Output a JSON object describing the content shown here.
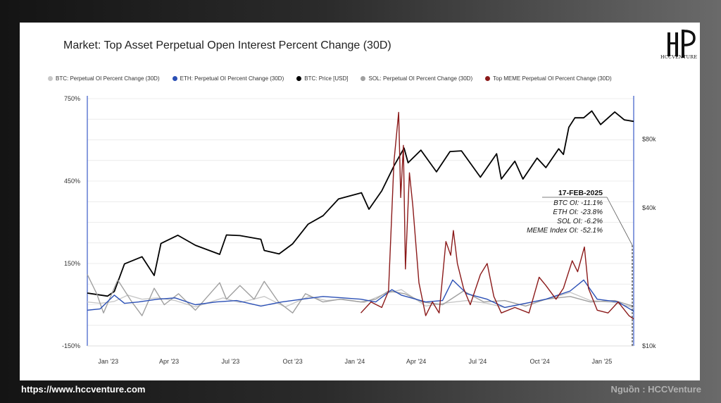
{
  "brand": {
    "logo_text": "HCCVENTURE"
  },
  "footer": {
    "url": "https://www.hccventure.com",
    "source": "Nguồn : HCCVenture"
  },
  "chart_data": {
    "type": "line",
    "title": "Market: Top Asset Perpetual Open Interest Percent Change (30D)",
    "legend": [
      {
        "name": "BTC: Perpetual OI Percent Change (30D)",
        "color": "#c8c8c8"
      },
      {
        "name": "ETH: Perpetual OI Percent Change (30D)",
        "color": "#2a4fb5"
      },
      {
        "name": "BTC: Price [USD]",
        "color": "#000000"
      },
      {
        "name": "SOL: Perpetual OI Percent Change (30D)",
        "color": "#a0a0a0"
      },
      {
        "name": "Top MEME Perpetual OI Percent Change (30D)",
        "color": "#8b1a1a"
      }
    ],
    "legend_position": "top",
    "x_ticks": [
      "Jan '23",
      "Apr '23",
      "Jul '23",
      "Oct '23",
      "Jan '24",
      "Apr '24",
      "Jul '24",
      "Oct '24",
      "Jan '25"
    ],
    "x_tick_dates": [
      "2023-01-01",
      "2023-04-01",
      "2023-07-01",
      "2023-10-01",
      "2024-01-01",
      "2024-04-01",
      "2024-07-01",
      "2024-10-01",
      "2025-01-01"
    ],
    "xlim": [
      "2022-12-01",
      "2025-02-17"
    ],
    "y_left": {
      "ticks": [
        "750%",
        "450%",
        "150%",
        "-150%"
      ],
      "values": [
        750,
        450,
        150,
        -150
      ],
      "ylim": [
        -150,
        750
      ]
    },
    "y_right": {
      "ticks": [
        "$80k",
        "$40k",
        "$10k"
      ],
      "values": [
        80000,
        40000,
        10000
      ],
      "scale": "log",
      "ylim": [
        10000,
        120000
      ]
    },
    "grid": true,
    "series": [
      {
        "name": "BTC: Price [USD]",
        "axis": "right",
        "color": "#000000",
        "points": [
          [
            "2022-12-01",
            17000
          ],
          [
            "2022-12-31",
            16500
          ],
          [
            "2023-01-10",
            17300
          ],
          [
            "2023-01-25",
            22800
          ],
          [
            "2023-02-20",
            24500
          ],
          [
            "2023-03-10",
            20300
          ],
          [
            "2023-03-20",
            28000
          ],
          [
            "2023-04-14",
            30400
          ],
          [
            "2023-05-10",
            27500
          ],
          [
            "2023-06-15",
            25100
          ],
          [
            "2023-06-25",
            30500
          ],
          [
            "2023-07-15",
            30300
          ],
          [
            "2023-08-15",
            29200
          ],
          [
            "2023-08-20",
            26100
          ],
          [
            "2023-09-11",
            25200
          ],
          [
            "2023-10-01",
            27900
          ],
          [
            "2023-10-24",
            34000
          ],
          [
            "2023-11-15",
            37000
          ],
          [
            "2023-12-08",
            43800
          ],
          [
            "2024-01-11",
            46600
          ],
          [
            "2024-01-22",
            39500
          ],
          [
            "2024-02-10",
            47500
          ],
          [
            "2024-02-28",
            61000
          ],
          [
            "2024-03-14",
            73000
          ],
          [
            "2024-03-20",
            63000
          ],
          [
            "2024-04-08",
            71500
          ],
          [
            "2024-05-01",
            57500
          ],
          [
            "2024-05-21",
            70500
          ],
          [
            "2024-06-07",
            71000
          ],
          [
            "2024-07-05",
            54500
          ],
          [
            "2024-07-29",
            69000
          ],
          [
            "2024-08-05",
            53500
          ],
          [
            "2024-08-25",
            64000
          ],
          [
            "2024-09-06",
            53500
          ],
          [
            "2024-09-27",
            66000
          ],
          [
            "2024-10-10",
            60000
          ],
          [
            "2024-10-29",
            72500
          ],
          [
            "2024-11-05",
            68500
          ],
          [
            "2024-11-13",
            90000
          ],
          [
            "2024-11-22",
            99000
          ],
          [
            "2024-12-05",
            99000
          ],
          [
            "2024-12-17",
            106000
          ],
          [
            "2024-12-30",
            92500
          ],
          [
            "2025-01-20",
            105000
          ],
          [
            "2025-02-03",
            97000
          ],
          [
            "2025-02-17",
            95500
          ]
        ]
      },
      {
        "name": "BTC: Perpetual OI Percent Change (30D)",
        "axis": "left",
        "color": "#c8c8c8",
        "points": [
          [
            "2022-12-01",
            10
          ],
          [
            "2022-12-20",
            5
          ],
          [
            "2023-01-10",
            12
          ],
          [
            "2023-01-30",
            35
          ],
          [
            "2023-02-20",
            20
          ],
          [
            "2023-03-15",
            25
          ],
          [
            "2023-04-10",
            15
          ],
          [
            "2023-05-10",
            -8
          ],
          [
            "2023-06-20",
            25
          ],
          [
            "2023-07-15",
            8
          ],
          [
            "2023-08-20",
            30
          ],
          [
            "2023-09-20",
            -8
          ],
          [
            "2023-10-25",
            30
          ],
          [
            "2023-11-20",
            15
          ],
          [
            "2023-12-15",
            20
          ],
          [
            "2024-01-15",
            8
          ],
          [
            "2024-02-15",
            40
          ],
          [
            "2024-03-10",
            55
          ],
          [
            "2024-04-15",
            -5
          ],
          [
            "2024-05-20",
            8
          ],
          [
            "2024-06-15",
            15
          ],
          [
            "2024-07-15",
            5
          ],
          [
            "2024-08-10",
            -10
          ],
          [
            "2024-09-15",
            8
          ],
          [
            "2024-10-20",
            25
          ],
          [
            "2024-11-15",
            45
          ],
          [
            "2024-12-15",
            15
          ],
          [
            "2025-01-20",
            8
          ],
          [
            "2025-02-17",
            -11.1
          ]
        ]
      },
      {
        "name": "SOL: Perpetual OI Percent Change (30D)",
        "axis": "left",
        "color": "#a0a0a0",
        "points": [
          [
            "2022-12-01",
            110
          ],
          [
            "2022-12-15",
            40
          ],
          [
            "2022-12-25",
            -30
          ],
          [
            "2023-01-15",
            90
          ],
          [
            "2023-02-05",
            10
          ],
          [
            "2023-02-20",
            -40
          ],
          [
            "2023-03-10",
            60
          ],
          [
            "2023-03-25",
            0
          ],
          [
            "2023-04-15",
            40
          ],
          [
            "2023-05-10",
            -20
          ],
          [
            "2023-06-15",
            80
          ],
          [
            "2023-06-25",
            20
          ],
          [
            "2023-07-15",
            70
          ],
          [
            "2023-08-05",
            20
          ],
          [
            "2023-08-20",
            85
          ],
          [
            "2023-09-10",
            10
          ],
          [
            "2023-10-01",
            -30
          ],
          [
            "2023-10-20",
            40
          ],
          [
            "2023-11-15",
            10
          ],
          [
            "2023-12-10",
            20
          ],
          [
            "2024-01-10",
            10
          ],
          [
            "2024-02-01",
            20
          ],
          [
            "2024-02-20",
            50
          ],
          [
            "2024-03-15",
            40
          ],
          [
            "2024-04-10",
            10
          ],
          [
            "2024-05-10",
            0
          ],
          [
            "2024-06-10",
            50
          ],
          [
            "2024-07-10",
            10
          ],
          [
            "2024-08-10",
            15
          ],
          [
            "2024-09-10",
            -5
          ],
          [
            "2024-10-10",
            20
          ],
          [
            "2024-11-15",
            30
          ],
          [
            "2024-12-15",
            10
          ],
          [
            "2025-01-20",
            15
          ],
          [
            "2025-02-17",
            -6.2
          ]
        ]
      },
      {
        "name": "ETH: Perpetual OI Percent Change (30D)",
        "axis": "left",
        "color": "#2a4fb5",
        "points": [
          [
            "2022-12-01",
            -20
          ],
          [
            "2022-12-20",
            -15
          ],
          [
            "2023-01-10",
            35
          ],
          [
            "2023-01-25",
            5
          ],
          [
            "2023-02-15",
            10
          ],
          [
            "2023-03-15",
            20
          ],
          [
            "2023-04-10",
            25
          ],
          [
            "2023-05-10",
            0
          ],
          [
            "2023-06-10",
            10
          ],
          [
            "2023-07-10",
            15
          ],
          [
            "2023-08-15",
            -5
          ],
          [
            "2023-09-15",
            10
          ],
          [
            "2023-10-15",
            20
          ],
          [
            "2023-11-15",
            30
          ],
          [
            "2023-12-15",
            25
          ],
          [
            "2024-01-10",
            20
          ],
          [
            "2024-02-01",
            10
          ],
          [
            "2024-02-25",
            55
          ],
          [
            "2024-03-10",
            35
          ],
          [
            "2024-04-15",
            10
          ],
          [
            "2024-05-10",
            15
          ],
          [
            "2024-05-25",
            90
          ],
          [
            "2024-06-15",
            40
          ],
          [
            "2024-07-15",
            20
          ],
          [
            "2024-08-10",
            -10
          ],
          [
            "2024-09-10",
            5
          ],
          [
            "2024-10-10",
            20
          ],
          [
            "2024-11-15",
            50
          ],
          [
            "2024-12-05",
            90
          ],
          [
            "2024-12-25",
            20
          ],
          [
            "2025-01-25",
            10
          ],
          [
            "2025-02-17",
            -23.8
          ]
        ]
      },
      {
        "name": "Top MEME Perpetual OI Percent Change (30D)",
        "axis": "left",
        "color": "#8b1a1a",
        "points": [
          [
            "2024-01-10",
            -30
          ],
          [
            "2024-01-25",
            10
          ],
          [
            "2024-02-10",
            -10
          ],
          [
            "2024-02-20",
            50
          ],
          [
            "2024-02-28",
            520
          ],
          [
            "2024-03-06",
            700
          ],
          [
            "2024-03-09",
            390
          ],
          [
            "2024-03-13",
            580
          ],
          [
            "2024-03-16",
            130
          ],
          [
            "2024-03-22",
            480
          ],
          [
            "2024-03-27",
            360
          ],
          [
            "2024-04-05",
            80
          ],
          [
            "2024-04-15",
            -40
          ],
          [
            "2024-04-25",
            10
          ],
          [
            "2024-05-05",
            -30
          ],
          [
            "2024-05-15",
            230
          ],
          [
            "2024-05-22",
            180
          ],
          [
            "2024-05-26",
            270
          ],
          [
            "2024-06-01",
            150
          ],
          [
            "2024-06-10",
            60
          ],
          [
            "2024-06-20",
            0
          ],
          [
            "2024-07-05",
            110
          ],
          [
            "2024-07-15",
            150
          ],
          [
            "2024-07-25",
            30
          ],
          [
            "2024-08-05",
            -30
          ],
          [
            "2024-08-25",
            -10
          ],
          [
            "2024-09-15",
            -30
          ],
          [
            "2024-09-30",
            100
          ],
          [
            "2024-10-10",
            70
          ],
          [
            "2024-10-25",
            20
          ],
          [
            "2024-11-05",
            60
          ],
          [
            "2024-11-18",
            160
          ],
          [
            "2024-11-26",
            120
          ],
          [
            "2024-12-06",
            210
          ],
          [
            "2024-12-12",
            60
          ],
          [
            "2024-12-25",
            -20
          ],
          [
            "2025-01-10",
            -30
          ],
          [
            "2025-01-25",
            10
          ],
          [
            "2025-02-10",
            -40
          ],
          [
            "2025-02-17",
            -52.1
          ]
        ]
      }
    ],
    "annotation": {
      "date": "17-FEB-2025",
      "lines": [
        "BTC OI: -11.1%",
        "ETH OI: -23.8%",
        "SOL OI: -6.2%",
        "MEME Index OI: -52.1%"
      ]
    }
  }
}
